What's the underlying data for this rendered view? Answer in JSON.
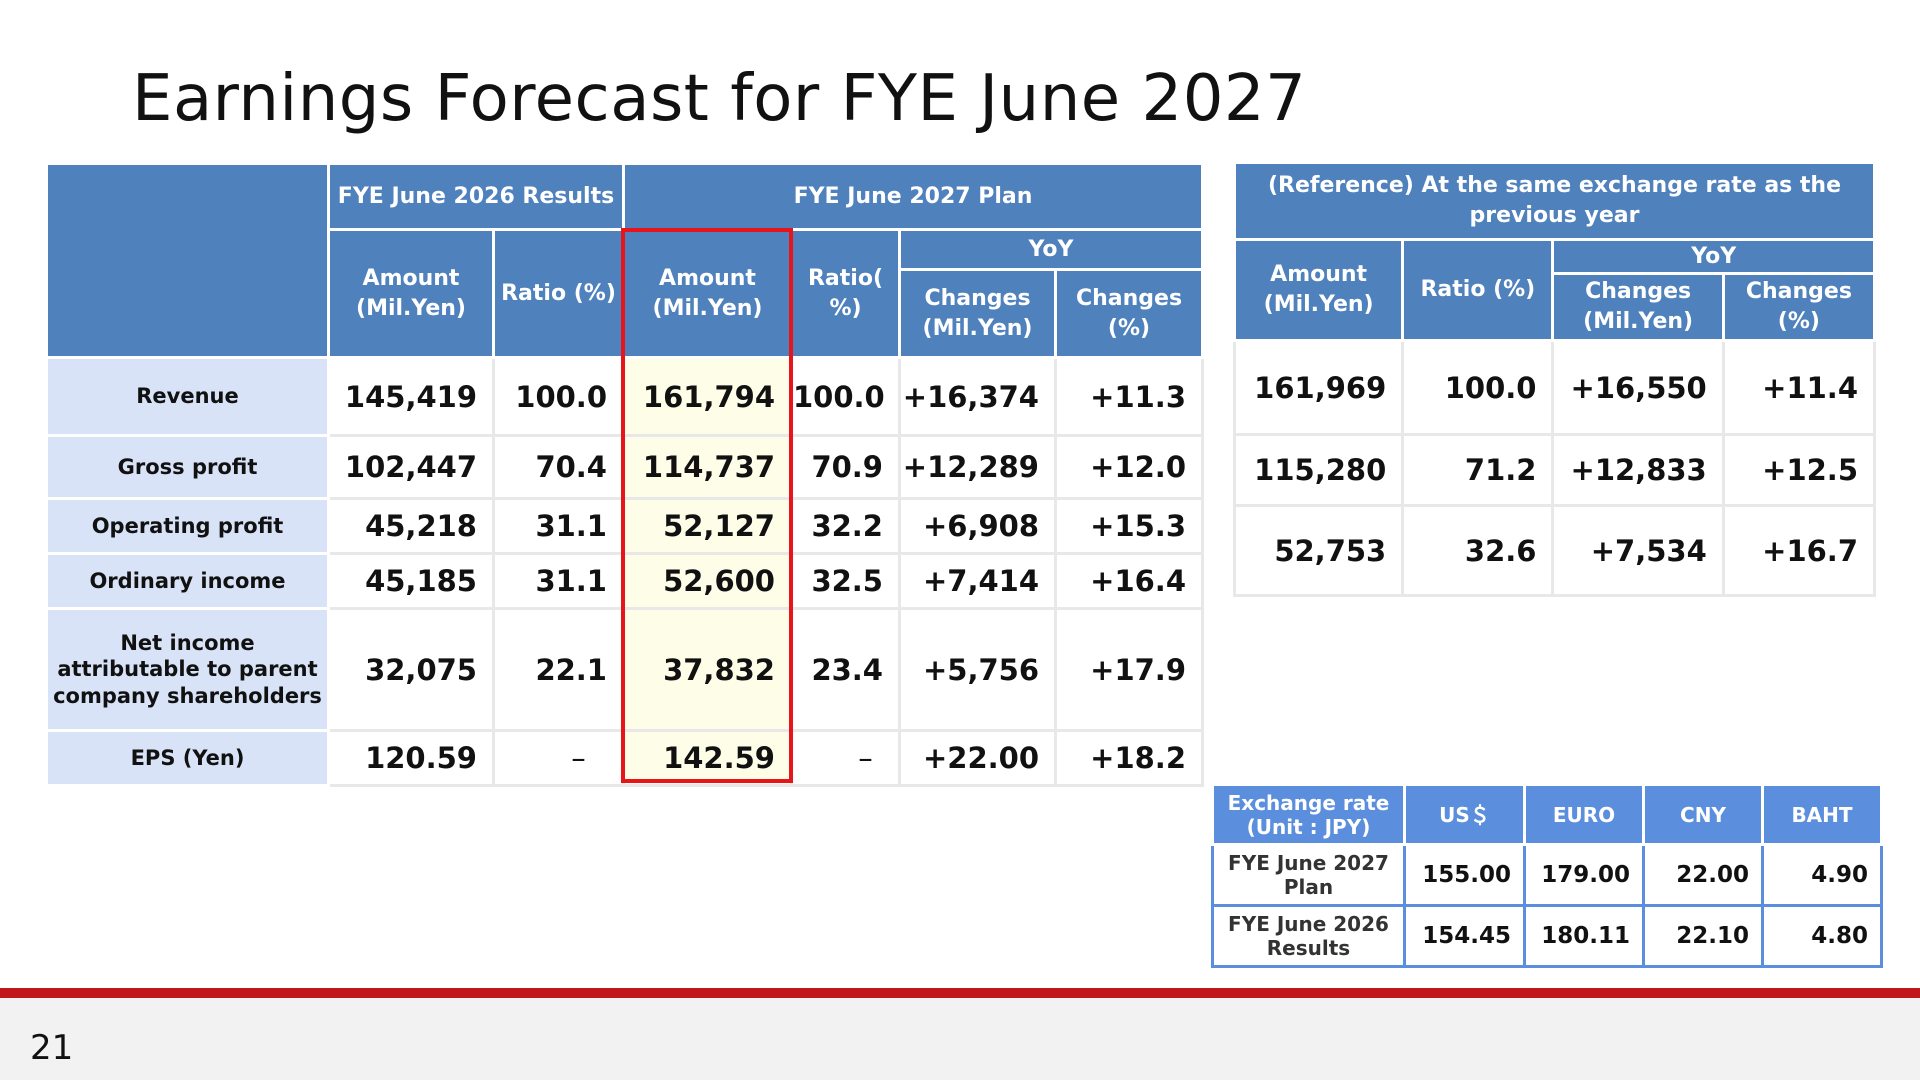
{
  "title": "Earnings Forecast for FYE June 2027",
  "page_number": "21",
  "main_table": {
    "group_headers": {
      "results": "FYE June 2026 Results",
      "plan": "FYE June 2027 Plan",
      "yoy": "YoY"
    },
    "col_headers": {
      "amount": "Amount (Mil.Yen)",
      "ratio_results": "Ratio (%)",
      "amount_plan": "Amount (Mil.Yen)",
      "ratio_plan": "Ratio( %)",
      "changes_mil": "Changes (Mil.Yen)",
      "changes_pct": "Changes (%)"
    },
    "rows": [
      {
        "label": "Revenue",
        "r_amount": "145,419",
        "r_ratio": "100.0",
        "p_amount": "161,794",
        "p_ratio": "100.0",
        "chg": "+16,374",
        "chg_pct": "+11.3"
      },
      {
        "label": "Gross profit",
        "r_amount": "102,447",
        "r_ratio": "70.4",
        "p_amount": "114,737",
        "p_ratio": "70.9",
        "chg": "+12,289",
        "chg_pct": "+12.0"
      },
      {
        "label": "Operating profit",
        "r_amount": "45,218",
        "r_ratio": "31.1",
        "p_amount": "52,127",
        "p_ratio": "32.2",
        "chg": "+6,908",
        "chg_pct": "+15.3"
      },
      {
        "label": "Ordinary income",
        "r_amount": "45,185",
        "r_ratio": "31.1",
        "p_amount": "52,600",
        "p_ratio": "32.5",
        "chg": "+7,414",
        "chg_pct": "+16.4"
      },
      {
        "label": "Net income attributable to parent company shareholders",
        "r_amount": "32,075",
        "r_ratio": "22.1",
        "p_amount": "37,832",
        "p_ratio": "23.4",
        "chg": "+5,756",
        "chg_pct": "+17.9"
      },
      {
        "label": "EPS (Yen)",
        "r_amount": "120.59",
        "r_ratio": "–",
        "p_amount": "142.59",
        "p_ratio": "–",
        "chg": "+22.00",
        "chg_pct": "+18.2"
      }
    ]
  },
  "ref_table": {
    "header": "(Reference) At the same exchange rate as the previous year",
    "yoy": "YoY",
    "col_headers": {
      "amount": "Amount (Mil.Yen)",
      "ratio": "Ratio (%)",
      "changes_mil": "Changes (Mil.Yen)",
      "changes_pct": "Changes (%)"
    },
    "rows": [
      {
        "amount": "161,969",
        "ratio": "100.0",
        "chg": "+16,550",
        "chg_pct": "+11.4"
      },
      {
        "amount": "115,280",
        "ratio": "71.2",
        "chg": "+12,833",
        "chg_pct": "+12.5"
      },
      {
        "amount": "52,753",
        "ratio": "32.6",
        "chg": "+7,534",
        "chg_pct": "+16.7"
      }
    ]
  },
  "fx_table": {
    "corner": "Exchange rate (Unit : JPY)",
    "currencies": [
      "US＄",
      "EURO",
      "CNY",
      "BAHT"
    ],
    "rows": [
      {
        "label": "FYE June 2027 Plan",
        "values": [
          "155.00",
          "179.00",
          "22.00",
          "4.90"
        ]
      },
      {
        "label": "FYE June 2026 Results",
        "values": [
          "154.45",
          "180.11",
          "22.10",
          "4.80"
        ]
      }
    ]
  },
  "colors": {
    "header_blue": "#4f81bd",
    "row_label_bg": "#d9e3f8",
    "highlight_bg": "#fefee8",
    "highlight_border": "#e8141b",
    "footer_line": "#c0161c"
  }
}
